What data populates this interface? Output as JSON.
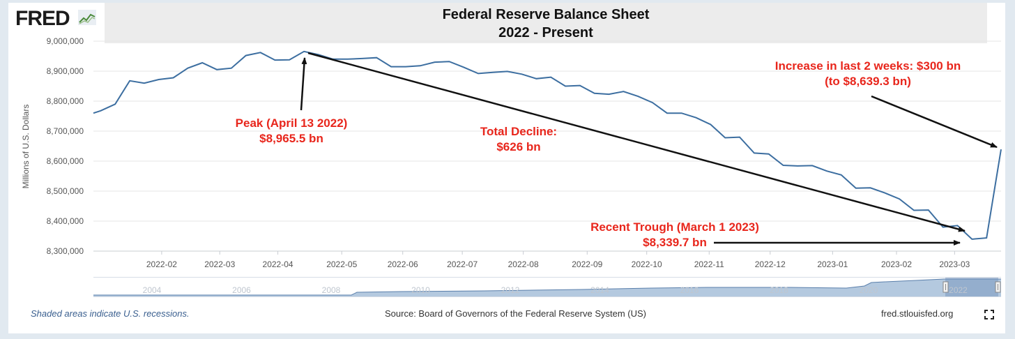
{
  "header": {
    "logo_text": "FRED",
    "logo_icon": "trend-chart-icon",
    "title_line1": "Federal Reserve Balance Sheet",
    "title_line2": "2022 - Present"
  },
  "chart_data": {
    "type": "line",
    "ylabel": "Millions of U.S. Dollars",
    "xlabel": "",
    "ylim": [
      8300000,
      9000000
    ],
    "y_ticks": [
      "8,300,000",
      "8,400,000",
      "8,500,000",
      "8,600,000",
      "8,700,000",
      "8,800,000",
      "8,900,000",
      "9,000,000"
    ],
    "y_tick_values": [
      8300000,
      8400000,
      8500000,
      8600000,
      8700000,
      8800000,
      8900000,
      9000000
    ],
    "x_ticks": [
      "2022-02",
      "2022-03",
      "2022-04",
      "2022-05",
      "2022-06",
      "2022-07",
      "2022-08",
      "2022-09",
      "2022-10",
      "2022-11",
      "2022-12",
      "2023-01",
      "2023-02",
      "2023-03"
    ],
    "x_tick_weeks": [
      4.7,
      8.7,
      12.7,
      17.1,
      21.3,
      25.4,
      29.6,
      34.0,
      38.1,
      42.4,
      46.6,
      50.9,
      55.3,
      59.3
    ],
    "x_range_weeks": [
      0,
      62.5
    ],
    "series": [
      {
        "name": "Federal Reserve Balance Sheet",
        "color": "#3c6ea0",
        "week_index": [
          0,
          0.5,
          1.5,
          2.5,
          3.5,
          4.5,
          5.5,
          6.5,
          7.5,
          8.5,
          9.5,
          10.5,
          11.5,
          12.5,
          13.5,
          14.5,
          15.5,
          16.5,
          17.5,
          18.5,
          19.5,
          20.5,
          21.5,
          22.5,
          23.5,
          24.5,
          25.5,
          26.5,
          27.5,
          28.5,
          29.5,
          30.5,
          31.5,
          32.5,
          33.5,
          34.5,
          35.5,
          36.5,
          37.5,
          38.5,
          39.5,
          40.5,
          41.5,
          42.5,
          43.5,
          44.5,
          45.5,
          46.5,
          47.5,
          48.5,
          49.5,
          50.5,
          51.5,
          52.5,
          53.5,
          54.5,
          55.5,
          56.5,
          57.5,
          58.5,
          59.5,
          60.5,
          61.5,
          62.5
        ],
        "values": [
          8760000,
          8768000,
          8790000,
          8868000,
          8860000,
          8872000,
          8878000,
          8910000,
          8928000,
          8905000,
          8910000,
          8952000,
          8962000,
          8937000,
          8938000,
          8965500,
          8955000,
          8940000,
          8940000,
          8942000,
          8945000,
          8915000,
          8915000,
          8918000,
          8930000,
          8932000,
          8913000,
          8892000,
          8896000,
          8899000,
          8890000,
          8875000,
          8880000,
          8850000,
          8852000,
          8826000,
          8823000,
          8832000,
          8816000,
          8795000,
          8760000,
          8760000,
          8745000,
          8722000,
          8678000,
          8680000,
          8627000,
          8624000,
          8586000,
          8584000,
          8585000,
          8567000,
          8554000,
          8510000,
          8511000,
          8494000,
          8474000,
          8436000,
          8437000,
          8380000,
          8385000,
          8339700,
          8344000,
          8639300
        ]
      }
    ],
    "annotations": [
      {
        "lines": [
          "Peak (April 13 2022)",
          "$8,965.5 bn"
        ]
      },
      {
        "lines": [
          "Total Decline:",
          "$626 bn"
        ]
      },
      {
        "lines": [
          "Increase in last 2 weeks: $300 bn",
          "(to $8,639.3 bn)"
        ]
      },
      {
        "lines": [
          "Recent Trough (March 1 2023)",
          "$8,339.7 bn"
        ]
      }
    ],
    "annotation_color": "#e8261c"
  },
  "navigator": {
    "year_labels": [
      "2004",
      "2006",
      "2008",
      "2010",
      "2012",
      "2014",
      "2016",
      "2018",
      "2020",
      "2022"
    ],
    "fill_color": "#7f9fc4"
  },
  "footer": {
    "recession_note": "Shaded areas indicate U.S. recessions.",
    "source": "Source: Board of Governors of the Federal Reserve System (US)",
    "site": "fred.stlouisfed.org",
    "fullscreen_icon": "fullscreen-icon"
  }
}
